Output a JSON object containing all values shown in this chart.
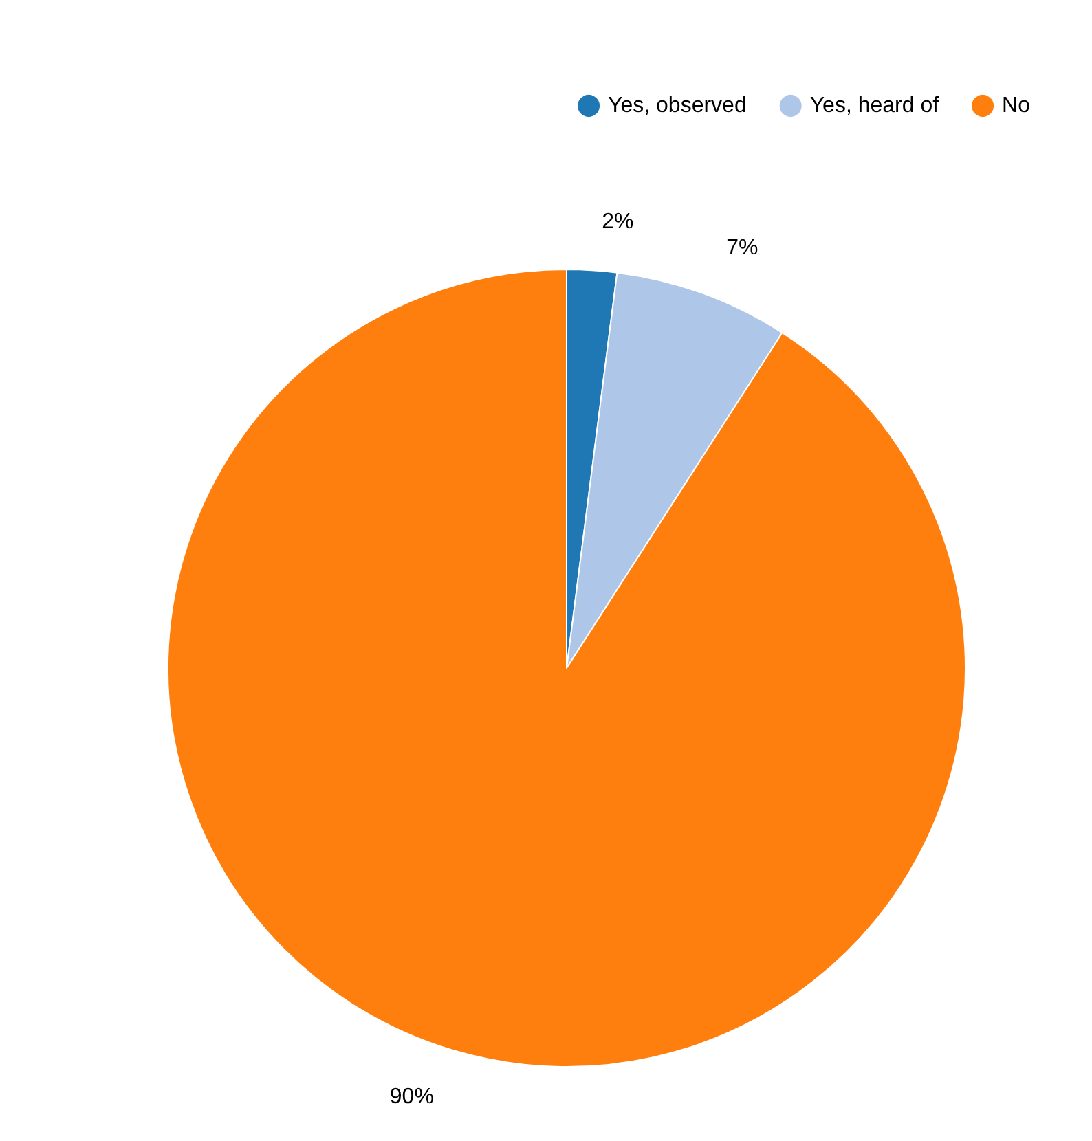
{
  "chart_data": {
    "type": "pie",
    "categories": [
      "Yes, observed",
      "Yes, heard of",
      "No"
    ],
    "values": [
      2,
      7,
      90
    ],
    "colors": [
      "#1f77b4",
      "#aec7e8",
      "#ff7f0e"
    ],
    "value_labels": [
      "2%",
      "7%",
      "90%"
    ],
    "legend": "top right"
  }
}
